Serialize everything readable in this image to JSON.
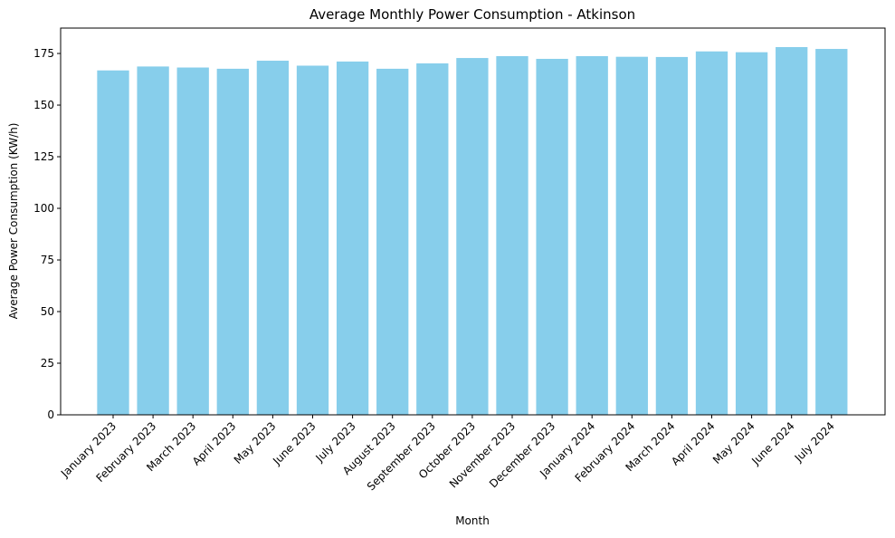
{
  "chart_data": {
    "type": "bar",
    "title": "Average Monthly Power Consumption - Atkinson",
    "xlabel": "Month",
    "ylabel": "Average Power Consumption (KW/h)",
    "categories": [
      "January 2023",
      "February 2023",
      "March 2023",
      "April 2023",
      "May 2023",
      "June 2023",
      "July 2023",
      "August 2023",
      "September 2023",
      "October 2023",
      "November 2023",
      "December 2023",
      "January 2024",
      "February 2024",
      "March 2024",
      "April 2024",
      "May 2024",
      "June 2024",
      "July 2024"
    ],
    "values": [
      166.8,
      168.7,
      168.2,
      167.6,
      171.5,
      169.1,
      171.1,
      167.6,
      170.2,
      172.8,
      173.7,
      172.4,
      173.7,
      173.4,
      173.3,
      176.0,
      175.6,
      178.1,
      177.2
    ],
    "ylim": [
      0,
      187.3
    ],
    "yticks": [
      0,
      25,
      50,
      75,
      100,
      125,
      150,
      175
    ],
    "bar_color": "#87ceeb",
    "grid": false,
    "legend": "none",
    "xtick_rotation_deg": 45
  }
}
